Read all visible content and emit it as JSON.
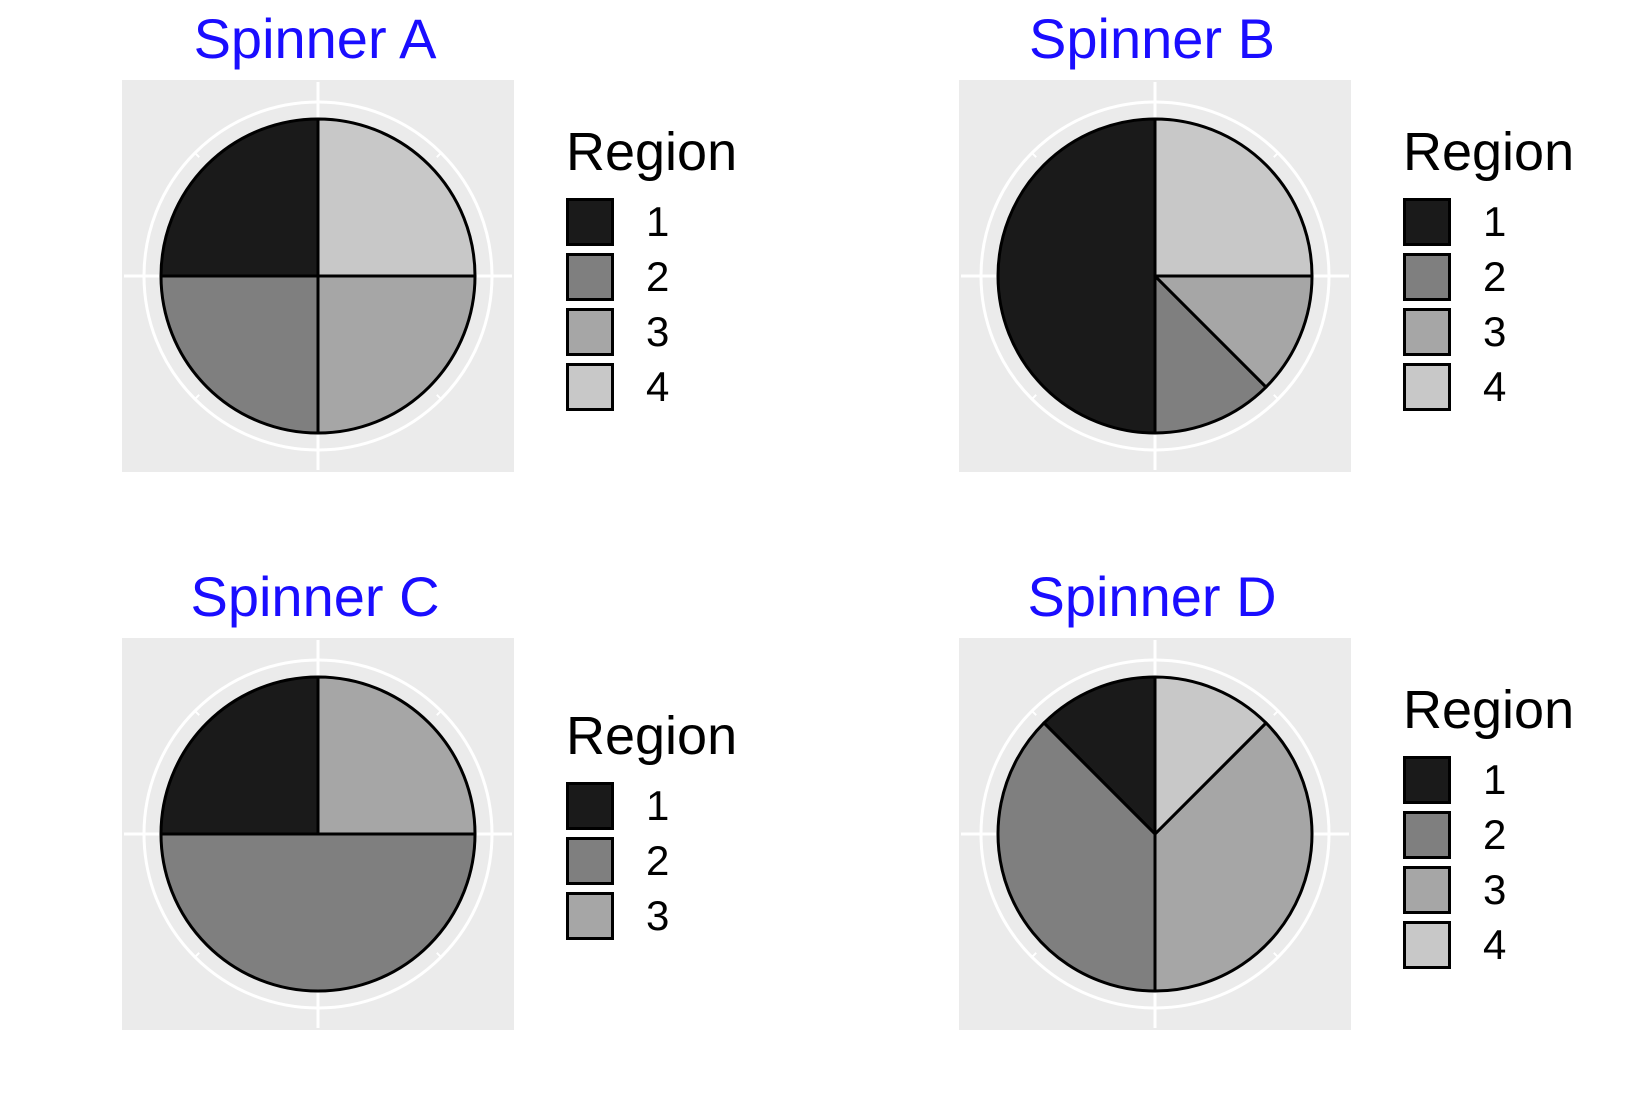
{
  "chart_data": [
    {
      "type": "pie",
      "title": "Spinner A",
      "legend_title": "Region",
      "legend_position": "right",
      "categories": [
        "1",
        "2",
        "3",
        "4"
      ],
      "values": [
        0.25,
        0.25,
        0.25,
        0.25
      ],
      "colors": [
        "#1a1a1a",
        "#7f7f7f",
        "#a6a6a6",
        "#c8c8c8"
      ],
      "slices": [
        {
          "label": "1",
          "start": 0.75,
          "end": 1.0
        },
        {
          "label": "2",
          "start": 0.5,
          "end": 0.75
        },
        {
          "label": "3",
          "start": 0.25,
          "end": 0.5
        },
        {
          "label": "4",
          "start": 0.0,
          "end": 0.25
        }
      ]
    },
    {
      "type": "pie",
      "title": "Spinner B",
      "legend_title": "Region",
      "legend_position": "right",
      "categories": [
        "1",
        "2",
        "3",
        "4"
      ],
      "values": [
        0.5,
        0.125,
        0.125,
        0.25
      ],
      "colors": [
        "#1a1a1a",
        "#7f7f7f",
        "#a6a6a6",
        "#c8c8c8"
      ],
      "slices": [
        {
          "label": "1",
          "start": 0.5,
          "end": 1.0
        },
        {
          "label": "2",
          "start": 0.375,
          "end": 0.5
        },
        {
          "label": "3",
          "start": 0.25,
          "end": 0.375
        },
        {
          "label": "4",
          "start": 0.0,
          "end": 0.25
        }
      ]
    },
    {
      "type": "pie",
      "title": "Spinner C",
      "legend_title": "Region",
      "legend_position": "right",
      "categories": [
        "1",
        "2",
        "3"
      ],
      "values": [
        0.25,
        0.5,
        0.25
      ],
      "colors": [
        "#1a1a1a",
        "#7f7f7f",
        "#a6a6a6"
      ],
      "slices": [
        {
          "label": "1",
          "start": 0.75,
          "end": 1.0
        },
        {
          "label": "2",
          "start": 0.25,
          "end": 0.75
        },
        {
          "label": "3",
          "start": 0.0,
          "end": 0.25
        }
      ]
    },
    {
      "type": "pie",
      "title": "Spinner D",
      "legend_title": "Region",
      "legend_position": "right",
      "categories": [
        "1",
        "2",
        "3",
        "4"
      ],
      "values": [
        0.125,
        0.375,
        0.375,
        0.125
      ],
      "colors": [
        "#1a1a1a",
        "#7f7f7f",
        "#a6a6a6",
        "#c8c8c8"
      ],
      "slices": [
        {
          "label": "1",
          "start": 0.875,
          "end": 1.0
        },
        {
          "label": "2",
          "start": 0.5,
          "end": 0.875
        },
        {
          "label": "3",
          "start": 0.125,
          "end": 0.5
        },
        {
          "label": "4",
          "start": 0.0,
          "end": 0.125
        }
      ]
    }
  ]
}
